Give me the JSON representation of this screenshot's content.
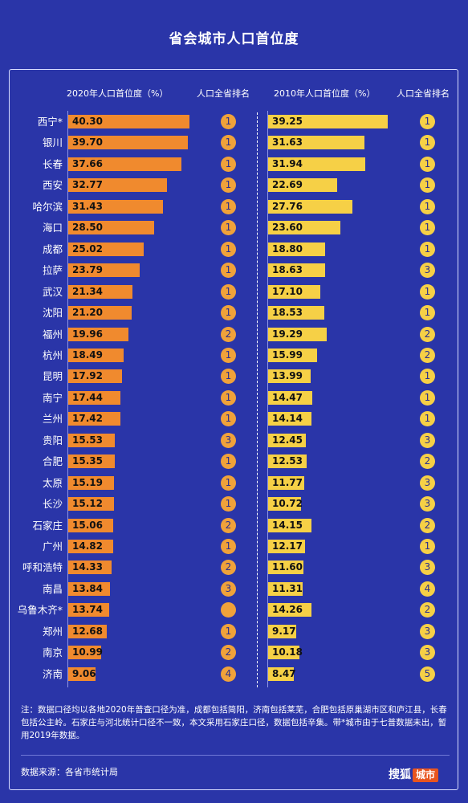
{
  "title": "省会城市人口首位度",
  "headers": {
    "h2020": "2020年人口首位度（%）",
    "rank2020": "人口全省排名",
    "h2010": "2010年人口首位度（%）",
    "rank2010": "人口全省排名"
  },
  "chart_data": {
    "type": "bar",
    "categories": [
      "西宁*",
      "银川",
      "长春",
      "西安",
      "哈尔滨",
      "海口",
      "成都",
      "拉萨",
      "武汉",
      "沈阳",
      "福州",
      "杭州",
      "昆明",
      "南宁",
      "兰州",
      "贵阳",
      "合肥",
      "太原",
      "长沙",
      "石家庄",
      "广州",
      "呼和浩特",
      "南昌",
      "乌鲁木齐*",
      "郑州",
      "南京",
      "济南"
    ],
    "series": [
      {
        "name": "2020年人口首位度（%）",
        "values": [
          40.3,
          39.7,
          37.66,
          32.77,
          31.43,
          28.5,
          25.02,
          23.79,
          21.34,
          21.2,
          19.96,
          18.49,
          17.92,
          17.44,
          17.42,
          15.53,
          15.35,
          15.19,
          15.12,
          15.06,
          14.82,
          14.33,
          13.84,
          13.74,
          12.68,
          10.99,
          9.06
        ]
      },
      {
        "name": "2010年人口首位度（%）",
        "values": [
          39.25,
          31.63,
          31.94,
          22.69,
          27.76,
          23.6,
          18.8,
          18.63,
          17.1,
          18.53,
          19.29,
          15.99,
          13.99,
          14.47,
          14.14,
          12.45,
          12.53,
          11.77,
          10.72,
          14.15,
          12.17,
          11.6,
          11.31,
          14.26,
          9.17,
          10.18,
          8.47
        ]
      }
    ],
    "labels_2020": [
      "40.30",
      "39.70",
      "37.66",
      "32.77",
      "31.43",
      "28.50",
      "25.02",
      "23.79",
      "21.34",
      "21.20",
      "19.96",
      "18.49",
      "17.92",
      "17.44",
      "17.42",
      "15.53",
      "15.35",
      "15.19",
      "15.12",
      "15.06",
      "14.82",
      "14.33",
      "13.84",
      "13.74",
      "12.68",
      "10.99",
      "9.06"
    ],
    "labels_2010": [
      "39.25",
      "31.63",
      "31.94",
      "22.69",
      "27.76",
      "23.60",
      "18.80",
      "18.63",
      "17.10",
      "18.53",
      "19.29",
      "15.99",
      "13.99",
      "14.47",
      "14.14",
      "12.45",
      "12.53",
      "11.77",
      "10.72",
      "14.15",
      "12.17",
      "11.60",
      "11.31",
      "14.26",
      "9.17",
      "10.18",
      "8.47"
    ],
    "rank_2020": [
      "1",
      "1",
      "1",
      "1",
      "1",
      "1",
      "1",
      "1",
      "1",
      "1",
      "2",
      "1",
      "1",
      "1",
      "1",
      "3",
      "1",
      "1",
      "1",
      "2",
      "1",
      "2",
      "3",
      "",
      "1",
      "2",
      "4"
    ],
    "rank_2010": [
      "1",
      "1",
      "1",
      "1",
      "1",
      "1",
      "1",
      "3",
      "1",
      "1",
      "2",
      "2",
      "1",
      "1",
      "1",
      "3",
      "2",
      "3",
      "3",
      "2",
      "1",
      "3",
      "4",
      "2",
      "3",
      "3",
      "5"
    ],
    "xlim": [
      0,
      40.3
    ]
  },
  "colors": {
    "background": "#2a35a8",
    "bar_2020": "#f08a2e",
    "bar_2010": "#f6d046",
    "badge_2020": "#f0a23a",
    "badge_2010": "#f6d046"
  },
  "note": "注：数据口径均以各地2020年普查口径为准，成都包括简阳，济南包括莱芜，合肥包括原巢湖市区和庐江县，长春包括公主岭。石家庄与河北统计口径不一致，本文采用石家庄口径，数据包括辛集。带*城市由于七普数据未出，暂用2019年数据。",
  "source": "数据来源：各省市统计局",
  "logo": {
    "text": "搜狐",
    "tag": "城市"
  }
}
